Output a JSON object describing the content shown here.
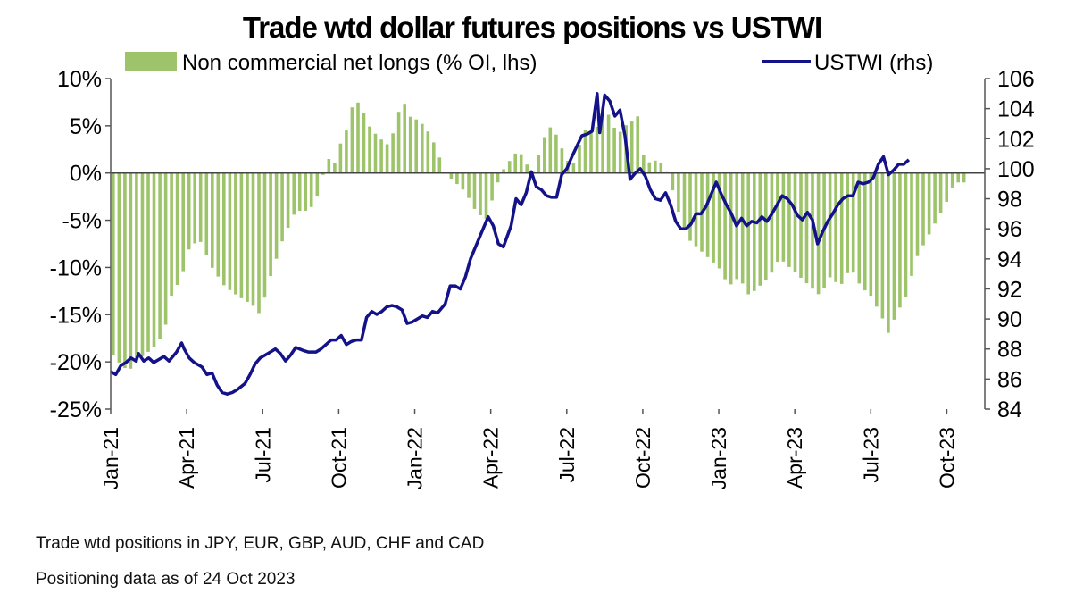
{
  "chart_data": {
    "type": "bar+line",
    "title": "Trade wtd dollar futures positions  vs USTWI",
    "legend": {
      "placement": "top",
      "bar_label": "Non commercial net longs (% OI, lhs)",
      "line_label": "USTWI (rhs)"
    },
    "colors": {
      "bars": "#9dc46a",
      "line": "#131289",
      "axis": "#555555",
      "zero": "#444444"
    },
    "left_axis": {
      "range": [
        -25,
        10
      ],
      "ticks": [
        10,
        5,
        0,
        -5,
        -10,
        -15,
        -20,
        -25
      ],
      "tick_labels": [
        "10%",
        "5%",
        "0%",
        "-5%",
        "-10%",
        "-15%",
        "-20%",
        "-25%"
      ]
    },
    "right_axis": {
      "range": [
        84,
        106
      ],
      "ticks": [
        106,
        104,
        102,
        100,
        98,
        96,
        94,
        92,
        90,
        88,
        86,
        84
      ],
      "tick_labels": [
        "106",
        "104",
        "102",
        "100",
        "98",
        "96",
        "94",
        "92",
        "90",
        "88",
        "86",
        "84"
      ]
    },
    "x_axis": {
      "range_months": [
        0,
        34.5
      ],
      "ticks": [
        0,
        3,
        6,
        9,
        12,
        15,
        18,
        21,
        24,
        27,
        30,
        33
      ],
      "tick_labels": [
        "Jan-21",
        "Apr-21",
        "Jul-21",
        "Oct-21",
        "Jan-22",
        "Apr-22",
        "Jul-22",
        "Oct-22",
        "Jan-23",
        "Apr-23",
        "Jul-23",
        "Oct-23"
      ]
    },
    "bar_series": {
      "name": "Non commercial net longs (% OI, lhs)",
      "start_month": 0.1,
      "step_months": 0.23,
      "anchors": [
        [
          0,
          -19
        ],
        [
          0.3,
          -20
        ],
        [
          0.7,
          -21
        ],
        [
          1.2,
          -19.5
        ],
        [
          1.7,
          -18.5
        ],
        [
          2.1,
          -17
        ],
        [
          2.4,
          -13
        ],
        [
          2.8,
          -11
        ],
        [
          3.1,
          -8
        ],
        [
          3.5,
          -7
        ],
        [
          4.0,
          -10
        ],
        [
          4.5,
          -12
        ],
        [
          5.0,
          -13
        ],
        [
          5.6,
          -14
        ],
        [
          5.9,
          -15
        ],
        [
          6.3,
          -11
        ],
        [
          6.8,
          -7
        ],
        [
          7.3,
          -4
        ],
        [
          7.8,
          -4
        ],
        [
          8.1,
          -3
        ],
        [
          8.4,
          0
        ],
        [
          8.6,
          1.5
        ],
        [
          8.9,
          1
        ],
        [
          9.1,
          3.5
        ],
        [
          9.4,
          5
        ],
        [
          9.6,
          8
        ],
        [
          9.9,
          7
        ],
        [
          10.2,
          5
        ],
        [
          10.5,
          4
        ],
        [
          10.9,
          3
        ],
        [
          11.2,
          4.5
        ],
        [
          11.5,
          8
        ],
        [
          11.8,
          6
        ],
        [
          12.2,
          5.5
        ],
        [
          12.5,
          4.5
        ],
        [
          12.8,
          3
        ],
        [
          13.2,
          0
        ],
        [
          13.6,
          -1
        ],
        [
          14.0,
          -2
        ],
        [
          14.4,
          -4
        ],
        [
          14.8,
          -5
        ],
        [
          15.1,
          -2.5
        ],
        [
          15.4,
          0
        ],
        [
          15.8,
          1.5
        ],
        [
          16.1,
          2.5
        ],
        [
          16.4,
          1
        ],
        [
          16.7,
          0
        ],
        [
          17.0,
          3
        ],
        [
          17.3,
          5
        ],
        [
          17.6,
          4
        ],
        [
          17.9,
          2
        ],
        [
          18.2,
          0.5
        ],
        [
          18.5,
          3
        ],
        [
          18.8,
          5
        ],
        [
          19.1,
          4
        ],
        [
          19.4,
          7
        ],
        [
          19.7,
          6
        ],
        [
          20.0,
          4
        ],
        [
          20.3,
          5
        ],
        [
          20.6,
          5.5
        ],
        [
          20.8,
          6
        ],
        [
          21.0,
          2
        ],
        [
          21.3,
          1
        ],
        [
          21.6,
          1.5
        ],
        [
          21.9,
          0.5
        ],
        [
          22.2,
          -2
        ],
        [
          22.5,
          -5
        ],
        [
          22.8,
          -7
        ],
        [
          23.2,
          -8
        ],
        [
          23.6,
          -9
        ],
        [
          24.0,
          -10
        ],
        [
          24.4,
          -12
        ],
        [
          24.8,
          -11
        ],
        [
          25.2,
          -13
        ],
        [
          25.6,
          -12
        ],
        [
          26.0,
          -11
        ],
        [
          26.4,
          -9
        ],
        [
          26.8,
          -10
        ],
        [
          27.2,
          -11
        ],
        [
          27.6,
          -12
        ],
        [
          28.0,
          -13
        ],
        [
          28.4,
          -11
        ],
        [
          28.8,
          -12
        ],
        [
          29.2,
          -10
        ],
        [
          29.6,
          -12
        ],
        [
          30.0,
          -13
        ],
        [
          30.4,
          -15
        ],
        [
          30.7,
          -17
        ],
        [
          31.0,
          -15
        ],
        [
          31.4,
          -13
        ],
        [
          31.8,
          -9
        ],
        [
          32.2,
          -7
        ],
        [
          32.6,
          -5
        ],
        [
          33.0,
          -3
        ],
        [
          33.3,
          -1
        ],
        [
          33.6,
          -1
        ]
      ],
      "end_month": 33.75
    },
    "line_series": {
      "name": "USTWI (rhs)",
      "points": [
        [
          0.0,
          86.5
        ],
        [
          0.2,
          86.3
        ],
        [
          0.4,
          86.9
        ],
        [
          0.6,
          87.1
        ],
        [
          0.8,
          87.4
        ],
        [
          1.0,
          87.2
        ],
        [
          1.1,
          87.7
        ],
        [
          1.3,
          87.2
        ],
        [
          1.5,
          87.4
        ],
        [
          1.7,
          87.1
        ],
        [
          1.9,
          87.3
        ],
        [
          2.1,
          87.5
        ],
        [
          2.3,
          87.2
        ],
        [
          2.6,
          87.8
        ],
        [
          2.8,
          88.4
        ],
        [
          2.9,
          88.0
        ],
        [
          3.1,
          87.4
        ],
        [
          3.3,
          87.1
        ],
        [
          3.6,
          86.8
        ],
        [
          3.8,
          86.3
        ],
        [
          4.0,
          86.4
        ],
        [
          4.2,
          85.6
        ],
        [
          4.4,
          85.1
        ],
        [
          4.6,
          85.0
        ],
        [
          4.8,
          85.1
        ],
        [
          5.0,
          85.3
        ],
        [
          5.3,
          85.7
        ],
        [
          5.5,
          86.3
        ],
        [
          5.7,
          87.0
        ],
        [
          5.9,
          87.4
        ],
        [
          6.1,
          87.6
        ],
        [
          6.3,
          87.8
        ],
        [
          6.5,
          88.0
        ],
        [
          6.7,
          87.7
        ],
        [
          6.9,
          87.2
        ],
        [
          7.1,
          87.6
        ],
        [
          7.3,
          88.1
        ],
        [
          7.6,
          87.9
        ],
        [
          7.8,
          87.8
        ],
        [
          8.1,
          87.8
        ],
        [
          8.3,
          88.0
        ],
        [
          8.5,
          88.3
        ],
        [
          8.7,
          88.6
        ],
        [
          8.9,
          88.6
        ],
        [
          9.1,
          88.9
        ],
        [
          9.3,
          88.3
        ],
        [
          9.5,
          88.5
        ],
        [
          9.7,
          88.6
        ],
        [
          9.9,
          88.6
        ],
        [
          10.1,
          90.1
        ],
        [
          10.3,
          90.5
        ],
        [
          10.5,
          90.3
        ],
        [
          10.7,
          90.5
        ],
        [
          10.9,
          90.8
        ],
        [
          11.1,
          90.9
        ],
        [
          11.3,
          90.8
        ],
        [
          11.5,
          90.6
        ],
        [
          11.7,
          89.7
        ],
        [
          11.9,
          89.8
        ],
        [
          12.1,
          90.0
        ],
        [
          12.3,
          90.2
        ],
        [
          12.5,
          90.1
        ],
        [
          12.7,
          90.5
        ],
        [
          12.9,
          90.4
        ],
        [
          13.2,
          91.0
        ],
        [
          13.4,
          92.2
        ],
        [
          13.6,
          92.2
        ],
        [
          13.8,
          92.0
        ],
        [
          14.0,
          92.8
        ],
        [
          14.2,
          94.0
        ],
        [
          14.4,
          94.8
        ],
        [
          14.7,
          96.0
        ],
        [
          14.9,
          96.8
        ],
        [
          15.1,
          96.2
        ],
        [
          15.3,
          95.0
        ],
        [
          15.5,
          94.8
        ],
        [
          15.8,
          96.2
        ],
        [
          16.0,
          98.0
        ],
        [
          16.2,
          97.6
        ],
        [
          16.4,
          98.4
        ],
        [
          16.6,
          99.8
        ],
        [
          16.8,
          98.8
        ],
        [
          17.0,
          98.6
        ],
        [
          17.2,
          98.2
        ],
        [
          17.4,
          98.1
        ],
        [
          17.6,
          98.1
        ],
        [
          17.8,
          99.6
        ],
        [
          18.0,
          100.0
        ],
        [
          18.2,
          100.8
        ],
        [
          18.4,
          101.5
        ],
        [
          18.6,
          102.2
        ],
        [
          18.8,
          102.3
        ],
        [
          19.0,
          102.5
        ],
        [
          19.2,
          105.0
        ],
        [
          19.3,
          102.4
        ],
        [
          19.5,
          104.9
        ],
        [
          19.7,
          104.5
        ],
        [
          19.9,
          103.5
        ],
        [
          20.1,
          103.9
        ],
        [
          20.3,
          102.2
        ],
        [
          20.5,
          99.3
        ],
        [
          20.7,
          99.7
        ],
        [
          20.9,
          100.0
        ],
        [
          21.1,
          99.5
        ],
        [
          21.3,
          98.6
        ],
        [
          21.5,
          98.0
        ],
        [
          21.7,
          97.9
        ],
        [
          21.9,
          98.4
        ],
        [
          22.1,
          97.6
        ],
        [
          22.3,
          96.5
        ],
        [
          22.5,
          96.0
        ],
        [
          22.7,
          96.0
        ],
        [
          22.9,
          96.3
        ],
        [
          23.1,
          97.0
        ],
        [
          23.3,
          97.0
        ],
        [
          23.5,
          97.5
        ],
        [
          23.7,
          98.3
        ],
        [
          23.9,
          99.1
        ],
        [
          24.1,
          98.3
        ],
        [
          24.3,
          97.6
        ],
        [
          24.5,
          97.0
        ],
        [
          24.7,
          96.2
        ],
        [
          24.9,
          96.7
        ],
        [
          25.1,
          96.2
        ],
        [
          25.3,
          96.5
        ],
        [
          25.5,
          96.4
        ],
        [
          25.7,
          96.8
        ],
        [
          25.9,
          96.5
        ],
        [
          26.1,
          97.0
        ],
        [
          26.3,
          97.6
        ],
        [
          26.5,
          98.2
        ],
        [
          26.7,
          98.0
        ],
        [
          26.9,
          97.6
        ],
        [
          27.1,
          96.9
        ],
        [
          27.3,
          96.6
        ],
        [
          27.5,
          97.1
        ],
        [
          27.7,
          96.6
        ],
        [
          27.9,
          95.0
        ],
        [
          28.1,
          95.8
        ],
        [
          28.3,
          96.5
        ],
        [
          28.5,
          97.0
        ],
        [
          28.7,
          97.6
        ],
        [
          28.9,
          98.0
        ],
        [
          29.1,
          98.2
        ],
        [
          29.3,
          98.2
        ],
        [
          29.5,
          99.1
        ],
        [
          29.7,
          99.0
        ],
        [
          29.9,
          99.1
        ],
        [
          30.1,
          99.4
        ],
        [
          30.3,
          100.3
        ],
        [
          30.5,
          100.8
        ],
        [
          30.7,
          99.6
        ],
        [
          30.9,
          99.9
        ],
        [
          31.1,
          100.3
        ],
        [
          31.3,
          100.3
        ],
        [
          31.5,
          100.6
        ]
      ]
    },
    "notes": [
      "Trade wtd positions in JPY, EUR, GBP, AUD, CHF and CAD",
      "Positioning data as of 24 Oct 2023"
    ]
  }
}
